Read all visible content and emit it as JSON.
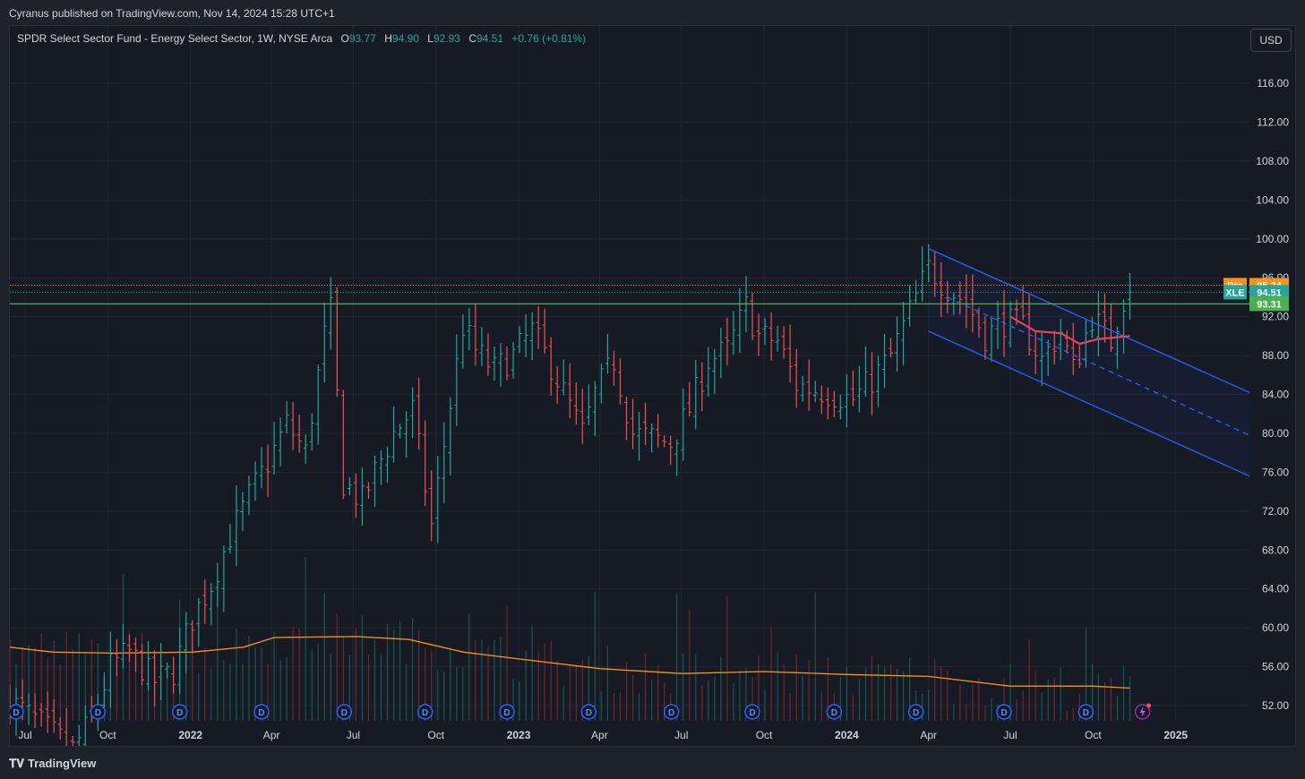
{
  "header": {
    "published_line": "Cyranus published on TradingView.com, Nov 14, 2024 15:28 UTC+1"
  },
  "legend": {
    "symbol_desc": "SPDR Select Sector Fund - Energy Select Sector, 1W, NYSE Arca",
    "o_label": "O",
    "o_value": "93.77",
    "h_label": "H",
    "h_value": "94.90",
    "l_label": "L",
    "l_value": "92.93",
    "c_label": "C",
    "c_value": "94.51",
    "change": "+0.76 (+0.81%)"
  },
  "currency_button": "USD",
  "footer": {
    "brand": "TradingView"
  },
  "colors": {
    "up": "#26a69a",
    "down": "#ef5350",
    "channel": "#2962ff",
    "support": "#4caf50",
    "volume_ma": "#f7931a",
    "pre": "#f7931a",
    "midline": "#e0455b"
  },
  "chart_data": {
    "type": "ohlc",
    "symbol": "XLE",
    "interval": "1W",
    "ylim": [
      50,
      120
    ],
    "y_ticks": [
      "116.00",
      "112.00",
      "108.00",
      "104.00",
      "100.00",
      "96.00",
      "92.00",
      "88.00",
      "84.00",
      "80.00",
      "76.00",
      "72.00",
      "68.00",
      "64.00",
      "60.00",
      "56.00",
      "52.00"
    ],
    "y_tick_values": [
      116,
      112,
      108,
      104,
      100,
      96,
      92,
      88,
      84,
      80,
      76,
      72,
      68,
      64,
      60,
      56,
      52
    ],
    "x_range": [
      "2021-06-14",
      "2025-03-24"
    ],
    "x_ticks": [
      {
        "label": "Jul",
        "date": "2021-07-01"
      },
      {
        "label": "Oct",
        "date": "2021-10-01"
      },
      {
        "label": "2022",
        "date": "2022-01-01"
      },
      {
        "label": "Apr",
        "date": "2022-04-01"
      },
      {
        "label": "Jul",
        "date": "2022-07-01"
      },
      {
        "label": "Oct",
        "date": "2022-10-01"
      },
      {
        "label": "2023",
        "date": "2023-01-01"
      },
      {
        "label": "Apr",
        "date": "2023-04-01"
      },
      {
        "label": "Jul",
        "date": "2023-07-01"
      },
      {
        "label": "Oct",
        "date": "2023-10-01"
      },
      {
        "label": "2024",
        "date": "2024-01-01"
      },
      {
        "label": "Apr",
        "date": "2024-04-01"
      },
      {
        "label": "Jul",
        "date": "2024-07-01"
      },
      {
        "label": "Oct",
        "date": "2024-10-01"
      },
      {
        "label": "2025",
        "date": "2025-01-01"
      }
    ],
    "close_series": [
      [
        "2021-06-14",
        52.5
      ],
      [
        "2021-07-05",
        51.0
      ],
      [
        "2021-08-02",
        49.0
      ],
      [
        "2021-08-23",
        47.5
      ],
      [
        "2021-09-13",
        50.5
      ],
      [
        "2021-10-04",
        56.0
      ],
      [
        "2021-10-25",
        57.5
      ],
      [
        "2021-11-22",
        54.5
      ],
      [
        "2021-12-13",
        55.5
      ],
      [
        "2022-01-03",
        61.0
      ],
      [
        "2022-01-24",
        64.5
      ],
      [
        "2022-02-14",
        69.5
      ],
      [
        "2022-03-07",
        73.5
      ],
      [
        "2022-03-28",
        77.0
      ],
      [
        "2022-04-18",
        81.0
      ],
      [
        "2022-05-09",
        78.0
      ],
      [
        "2022-05-30",
        90.0
      ],
      [
        "2022-06-06",
        92.5
      ],
      [
        "2022-06-20",
        75.0
      ],
      [
        "2022-07-11",
        73.0
      ],
      [
        "2022-07-25",
        76.0
      ],
      [
        "2022-08-15",
        80.0
      ],
      [
        "2022-09-05",
        82.5
      ],
      [
        "2022-09-26",
        70.5
      ],
      [
        "2022-10-17",
        83.0
      ],
      [
        "2022-10-31",
        91.0
      ],
      [
        "2022-11-14",
        88.5
      ],
      [
        "2022-12-05",
        86.5
      ],
      [
        "2022-12-26",
        88.0
      ],
      [
        "2023-01-16",
        90.5
      ],
      [
        "2023-02-06",
        87.0
      ],
      [
        "2023-03-13",
        80.0
      ],
      [
        "2023-03-27",
        84.0
      ],
      [
        "2023-04-17",
        87.5
      ],
      [
        "2023-05-08",
        80.0
      ],
      [
        "2023-05-29",
        79.5
      ],
      [
        "2023-06-19",
        79.0
      ],
      [
        "2023-07-10",
        82.5
      ],
      [
        "2023-07-31",
        87.5
      ],
      [
        "2023-08-21",
        88.5
      ],
      [
        "2023-09-11",
        93.0
      ],
      [
        "2023-09-25",
        90.0
      ],
      [
        "2023-10-16",
        89.5
      ],
      [
        "2023-11-06",
        85.0
      ],
      [
        "2023-11-27",
        84.5
      ],
      [
        "2023-12-18",
        84.0
      ],
      [
        "2024-01-08",
        83.5
      ],
      [
        "2024-01-29",
        85.5
      ],
      [
        "2024-02-19",
        88.0
      ],
      [
        "2024-03-11",
        92.5
      ],
      [
        "2024-04-01",
        97.0
      ],
      [
        "2024-04-22",
        95.0
      ],
      [
        "2024-05-13",
        93.5
      ],
      [
        "2024-06-03",
        90.0
      ],
      [
        "2024-06-24",
        91.5
      ],
      [
        "2024-07-15",
        91.0
      ],
      [
        "2024-08-05",
        87.5
      ],
      [
        "2024-08-26",
        90.5
      ],
      [
        "2024-09-09",
        86.5
      ],
      [
        "2024-09-30",
        92.0
      ],
      [
        "2024-10-21",
        89.5
      ],
      [
        "2024-11-04",
        93.8
      ],
      [
        "2024-11-11",
        94.5
      ]
    ],
    "last_bar": {
      "date": "2024-11-11",
      "open": 93.77,
      "high": 94.9,
      "low": 92.93,
      "close": 94.51
    },
    "price_labels": [
      {
        "tag": "Pre",
        "value": "95.24"
      },
      {
        "tag": "XLE",
        "value": "94.51"
      },
      {
        "tag": "",
        "value": "93.31"
      }
    ],
    "pre_price": 95.24,
    "last_price": 94.51,
    "support_level": 93.31,
    "channel": {
      "upper": [
        [
          "2024-04-01",
          99.0
        ],
        [
          "2025-03-24",
          84.2
        ]
      ],
      "lower": [
        [
          "2024-04-01",
          90.5
        ],
        [
          "2025-03-24",
          75.6
        ]
      ],
      "mid": [
        [
          "2024-04-22",
          94.0
        ],
        [
          "2025-03-24",
          79.8
        ]
      ]
    },
    "volume_ma_series": [
      [
        "2021-06-14",
        58.0
      ],
      [
        "2021-08-01",
        57.5
      ],
      [
        "2021-10-04",
        57.4
      ],
      [
        "2022-01-03",
        57.5
      ],
      [
        "2022-03-01",
        58.0
      ],
      [
        "2022-04-04",
        59.0
      ],
      [
        "2022-07-04",
        59.1
      ],
      [
        "2022-09-01",
        58.8
      ],
      [
        "2022-11-01",
        57.5
      ],
      [
        "2023-01-01",
        56.8
      ],
      [
        "2023-04-01",
        55.8
      ],
      [
        "2023-07-01",
        55.3
      ],
      [
        "2023-10-01",
        55.5
      ],
      [
        "2024-01-01",
        55.2
      ],
      [
        "2024-04-01",
        55.0
      ],
      [
        "2024-07-01",
        54.0
      ],
      [
        "2024-10-01",
        54.0
      ],
      [
        "2024-11-11",
        53.8
      ]
    ],
    "red_mid_series": [
      [
        "2024-07-01",
        92.0
      ],
      [
        "2024-07-29",
        90.5
      ],
      [
        "2024-08-26",
        90.3
      ],
      [
        "2024-09-16",
        89.2
      ],
      [
        "2024-10-07",
        89.7
      ],
      [
        "2024-11-11",
        90.0
      ]
    ],
    "dividend_markers": [
      "D",
      "D",
      "D",
      "D",
      "D",
      "D",
      "D",
      "D",
      "D",
      "D",
      "D",
      "D",
      "D",
      "D"
    ],
    "dividend_dates": [
      "2021-06-21",
      "2021-09-20",
      "2021-12-20",
      "2022-03-21",
      "2022-06-21",
      "2022-09-19",
      "2022-12-19",
      "2023-03-20",
      "2023-06-20",
      "2023-09-18",
      "2023-12-18",
      "2024-03-18",
      "2024-06-24",
      "2024-09-23"
    ],
    "upcoming_event_date": "2024-11-25"
  }
}
